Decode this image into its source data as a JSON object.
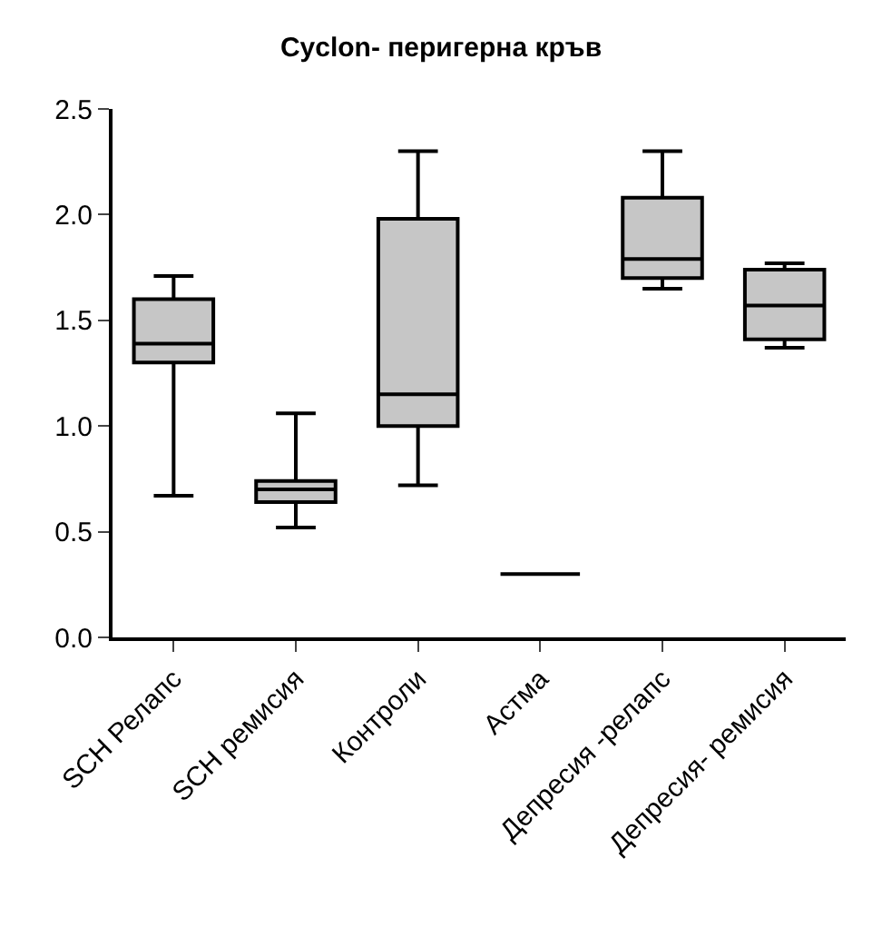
{
  "chart_data": {
    "type": "box",
    "title": "Cyclon- перигерна кръв",
    "categories": [
      "SCH Релапс",
      "SCH ремисия",
      "Контроли",
      "Астма",
      "Депресия -релапс",
      "Депресия- ремисия"
    ],
    "series": [
      {
        "color": "#000000",
        "boxes": [
          {
            "low": 0.67,
            "q1": 1.3,
            "median": 1.39,
            "q3": 1.6,
            "high": 1.71
          },
          {
            "low": 0.52,
            "q1": 0.64,
            "median": 0.7,
            "q3": 0.74,
            "high": 1.06
          },
          {
            "low": 0.72,
            "q1": 1.0,
            "median": 1.15,
            "q3": 1.98,
            "high": 2.3
          },
          {
            "low": 0.3,
            "q1": 0.3,
            "median": 0.3,
            "q3": 0.3,
            "high": 0.3
          },
          {
            "low": 1.65,
            "q1": 1.7,
            "median": 1.79,
            "q3": 2.08,
            "high": 2.3
          },
          {
            "low": 1.37,
            "q1": 1.41,
            "median": 1.57,
            "q3": 1.74,
            "high": 1.77
          }
        ]
      }
    ],
    "ylim": [
      0,
      2.5
    ],
    "yticks": [
      {
        "value": 0,
        "label": "0.0"
      },
      0.5,
      {
        "value": 1,
        "label": "1.0"
      },
      1.5,
      {
        "value": 2,
        "label": "2.0"
      },
      2.5
    ],
    "grid": false
  }
}
